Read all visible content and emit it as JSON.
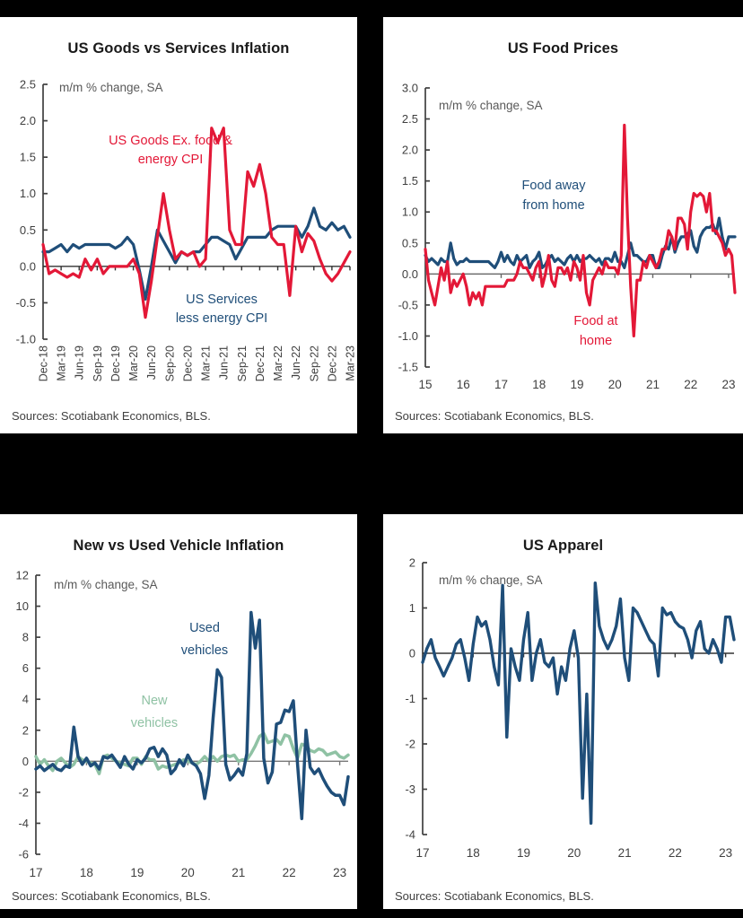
{
  "page": {
    "background": "#000000"
  },
  "colors": {
    "red": "#E31837",
    "blue": "#1F4E79",
    "green": "#8FC2A4",
    "axis": "#404040",
    "tick_text": "#404040",
    "annotation_text": "#595959",
    "title_text": "#1a1a1a"
  },
  "chart_data": [
    {
      "type": "line",
      "title": "US Goods vs Services Inflation",
      "annotation": "m/m % change, SA",
      "source": "Sources: Scotiabank Economics, BLS.",
      "ylim": [
        -1.0,
        2.5
      ],
      "ystep": 0.5,
      "ydecimals": 1,
      "x_mode": "category",
      "x_ticklabels": [
        "Dec-18",
        "Mar-19",
        "Jun-19",
        "Sep-19",
        "Dec-19",
        "Mar-20",
        "Jun-20",
        "Sep-20",
        "Dec-20",
        "Mar-21",
        "Jun-21",
        "Sep-21",
        "Dec-21",
        "Mar-22",
        "Jun-22",
        "Sep-22",
        "Dec-22",
        "Mar-23"
      ],
      "xtick_every": 3,
      "grid": false,
      "legend_position": "inline-labels",
      "series": [
        {
          "name": "US Services less energy CPI",
          "color": "blue",
          "label_lines": [
            "US Services",
            "less energy CPI"
          ],
          "values": [
            0.2,
            0.2,
            0.25,
            0.3,
            0.2,
            0.3,
            0.25,
            0.3,
            0.3,
            0.3,
            0.3,
            0.3,
            0.25,
            0.3,
            0.4,
            0.3,
            -0.05,
            -0.45,
            0.0,
            0.5,
            0.35,
            0.2,
            0.05,
            0.2,
            0.15,
            0.2,
            0.2,
            0.3,
            0.4,
            0.4,
            0.35,
            0.3,
            0.1,
            0.25,
            0.4,
            0.4,
            0.4,
            0.4,
            0.5,
            0.55,
            0.55,
            0.55,
            0.55,
            0.4,
            0.55,
            0.8,
            0.55,
            0.5,
            0.6,
            0.5,
            0.55,
            0.4
          ]
        },
        {
          "name": "US Goods Ex. food & energy CPI",
          "color": "red",
          "label_lines": [
            "US Goods Ex. food &",
            "energy CPI"
          ],
          "values": [
            0.3,
            -0.1,
            -0.05,
            -0.1,
            -0.15,
            -0.1,
            -0.15,
            0.1,
            -0.05,
            0.1,
            -0.1,
            0.0,
            0.0,
            0.0,
            0.0,
            0.1,
            -0.1,
            -0.7,
            -0.2,
            0.4,
            1.0,
            0.5,
            0.1,
            0.2,
            0.15,
            0.2,
            0.0,
            0.1,
            1.9,
            1.7,
            1.9,
            0.5,
            0.3,
            0.3,
            1.3,
            1.1,
            1.4,
            1.0,
            0.4,
            0.3,
            0.3,
            -0.4,
            0.55,
            0.2,
            0.45,
            0.35,
            0.1,
            -0.1,
            -0.2,
            -0.1,
            0.05,
            0.2
          ]
        }
      ]
    },
    {
      "type": "line",
      "title": "US Food Prices",
      "annotation": "m/m % change, SA",
      "source": "Sources: Scotiabank Economics, BLS.",
      "ylim": [
        -1.5,
        3.0
      ],
      "ystep": 0.5,
      "ydecimals": 1,
      "x_mode": "year",
      "x_start_year": 2015,
      "points_per_year": 12,
      "x_ticklabels": [
        "15",
        "16",
        "17",
        "18",
        "19",
        "20",
        "21",
        "22",
        "23"
      ],
      "grid": false,
      "legend_position": "inline-labels",
      "series": [
        {
          "name": "Food away from home",
          "color": "blue",
          "label_lines": [
            "Food away",
            "from home"
          ],
          "values": [
            0.3,
            0.2,
            0.25,
            0.2,
            0.15,
            0.25,
            0.2,
            0.2,
            0.5,
            0.25,
            0.15,
            0.2,
            0.2,
            0.25,
            0.2,
            0.2,
            0.2,
            0.2,
            0.2,
            0.2,
            0.2,
            0.15,
            0.1,
            0.2,
            0.35,
            0.2,
            0.3,
            0.2,
            0.15,
            0.3,
            0.2,
            0.25,
            0.3,
            0.1,
            0.2,
            0.25,
            0.35,
            0.1,
            0.15,
            0.25,
            0.3,
            0.2,
            0.25,
            0.2,
            0.15,
            0.25,
            0.3,
            0.2,
            0.3,
            0.2,
            0.25,
            0.25,
            0.3,
            0.25,
            0.2,
            0.25,
            0.15,
            0.25,
            0.25,
            0.2,
            0.35,
            0.2,
            0.2,
            0.1,
            0.3,
            0.5,
            0.3,
            0.3,
            0.25,
            0.2,
            0.2,
            0.3,
            0.3,
            0.1,
            0.1,
            0.3,
            0.45,
            0.4,
            0.6,
            0.35,
            0.5,
            0.6,
            0.6,
            0.65,
            0.7,
            0.45,
            0.35,
            0.6,
            0.7,
            0.75,
            0.75,
            0.8,
            0.65,
            0.9,
            0.6,
            0.4,
            0.6,
            0.6,
            0.6
          ]
        },
        {
          "name": "Food at home",
          "color": "red",
          "label_lines": [
            "Food at",
            "home"
          ],
          "values": [
            0.4,
            -0.1,
            -0.3,
            -0.5,
            -0.2,
            0.1,
            -0.1,
            0.2,
            -0.3,
            -0.1,
            -0.2,
            -0.1,
            0.0,
            -0.2,
            -0.5,
            -0.3,
            -0.4,
            -0.3,
            -0.5,
            -0.2,
            -0.2,
            -0.2,
            -0.2,
            -0.2,
            -0.2,
            -0.2,
            -0.1,
            -0.1,
            -0.1,
            0.0,
            0.2,
            0.1,
            0.1,
            0.0,
            -0.1,
            0.1,
            0.2,
            -0.2,
            0.0,
            0.3,
            -0.1,
            -0.2,
            0.1,
            0.1,
            0.0,
            0.1,
            -0.1,
            0.2,
            0.1,
            -0.1,
            0.3,
            -0.3,
            -0.5,
            -0.1,
            0.0,
            0.1,
            0.0,
            0.2,
            0.1,
            0.1,
            0.1,
            0.0,
            0.3,
            2.4,
            0.9,
            -0.2,
            -1.0,
            -0.1,
            -0.1,
            0.2,
            0.1,
            0.3,
            0.2,
            0.1,
            0.2,
            0.4,
            0.4,
            0.7,
            0.6,
            0.4,
            0.9,
            0.9,
            0.8,
            0.4,
            1.0,
            1.3,
            1.25,
            1.3,
            1.25,
            1.0,
            1.3,
            0.7,
            0.7,
            0.6,
            0.5,
            0.3,
            0.4,
            0.3,
            -0.3
          ]
        }
      ]
    },
    {
      "type": "line",
      "title": "New vs Used Vehicle Inflation",
      "annotation": "m/m % change, SA",
      "source": "Sources: Scotiabank Economics, BLS.",
      "ylim": [
        -6,
        12
      ],
      "ystep": 2,
      "ydecimals": 0,
      "x_mode": "year",
      "x_start_year": 2017,
      "points_per_year": 12,
      "x_ticklabels": [
        "17",
        "18",
        "19",
        "20",
        "21",
        "22",
        "23"
      ],
      "grid": false,
      "legend_position": "inline-labels",
      "series": [
        {
          "name": "New vehicles",
          "color": "green",
          "label_lines": [
            "New",
            "vehicles"
          ],
          "values": [
            0.3,
            -0.2,
            0.1,
            -0.3,
            -0.6,
            0.0,
            0.2,
            -0.1,
            -0.4,
            -0.2,
            0.3,
            0.1,
            0.0,
            -0.1,
            -0.2,
            -0.8,
            0.3,
            0.4,
            0.2,
            0.0,
            -0.1,
            -0.2,
            -0.3,
            0.2,
            0.2,
            -0.2,
            0.3,
            0.1,
            0.1,
            -0.5,
            -0.3,
            -0.4,
            -0.3,
            -0.2,
            -0.1,
            0.1,
            0.0,
            -0.1,
            -0.2,
            0.0,
            0.3,
            0.0,
            0.3,
            0.0,
            0.3,
            0.4,
            0.3,
            0.4,
            0.0,
            0.1,
            0.1,
            0.5,
            1.0,
            1.6,
            1.8,
            1.2,
            1.3,
            1.4,
            1.1,
            1.7,
            1.6,
            0.8,
            0.2,
            1.1,
            1.0,
            0.7,
            0.6,
            0.8,
            0.7,
            0.4,
            0.5,
            0.6,
            0.3,
            0.2,
            0.4
          ]
        },
        {
          "name": "Used vehicles",
          "color": "blue",
          "label_lines": [
            "Used",
            "vehicles"
          ],
          "values": [
            -0.5,
            -0.3,
            -0.6,
            -0.4,
            -0.2,
            -0.5,
            -0.6,
            -0.3,
            -0.4,
            2.2,
            0.3,
            -0.2,
            0.2,
            -0.3,
            -0.1,
            -0.5,
            0.3,
            0.2,
            0.4,
            0.0,
            -0.4,
            0.3,
            -0.2,
            -0.5,
            0.1,
            -0.1,
            0.2,
            0.8,
            0.9,
            0.3,
            0.8,
            0.4,
            -0.8,
            -0.5,
            0.1,
            -0.3,
            0.4,
            -0.1,
            -0.3,
            -0.8,
            -2.4,
            -0.9,
            2.8,
            5.9,
            5.4,
            -0.2,
            -1.2,
            -0.9,
            -0.5,
            -0.9,
            0.5,
            9.6,
            7.3,
            9.1,
            0.2,
            -1.4,
            -0.7,
            2.4,
            2.5,
            3.3,
            3.2,
            3.9,
            -0.2,
            -3.7,
            2.0,
            -0.4,
            -0.8,
            -0.5,
            -1.1,
            -1.6,
            -2.0,
            -2.2,
            -2.2,
            -2.8,
            -1.0
          ]
        }
      ]
    },
    {
      "type": "line",
      "title": "US Apparel",
      "annotation": "m/m % change, SA",
      "source": "Sources: Scotiabank Economics, BLS.",
      "ylim": [
        -4,
        2
      ],
      "ystep": 1,
      "ydecimals": 0,
      "x_mode": "year",
      "x_start_year": 2017,
      "points_per_year": 12,
      "x_ticklabels": [
        "17",
        "18",
        "19",
        "20",
        "21",
        "22",
        "23"
      ],
      "grid": false,
      "legend_position": "none",
      "series": [
        {
          "name": "US Apparel CPI",
          "color": "blue",
          "label_lines": [],
          "values": [
            -0.2,
            0.1,
            0.3,
            -0.1,
            -0.3,
            -0.5,
            -0.3,
            -0.1,
            0.2,
            0.3,
            -0.1,
            -0.6,
            0.2,
            0.8,
            0.6,
            0.7,
            0.3,
            -0.3,
            -0.7,
            1.5,
            -1.85,
            0.1,
            -0.3,
            -0.6,
            0.3,
            0.9,
            -0.6,
            0.0,
            0.3,
            -0.2,
            -0.3,
            -0.1,
            -0.9,
            -0.3,
            -0.6,
            0.1,
            0.5,
            -0.1,
            -3.2,
            -0.9,
            -3.75,
            1.55,
            0.6,
            0.3,
            0.1,
            0.3,
            0.6,
            1.2,
            -0.1,
            -0.6,
            1.0,
            0.9,
            0.7,
            0.5,
            0.3,
            0.2,
            -0.5,
            1.0,
            0.85,
            0.9,
            0.7,
            0.6,
            0.55,
            0.3,
            -0.1,
            0.5,
            0.7,
            0.1,
            0.0,
            0.3,
            0.1,
            -0.2,
            0.8,
            0.8,
            0.3
          ]
        }
      ]
    }
  ]
}
